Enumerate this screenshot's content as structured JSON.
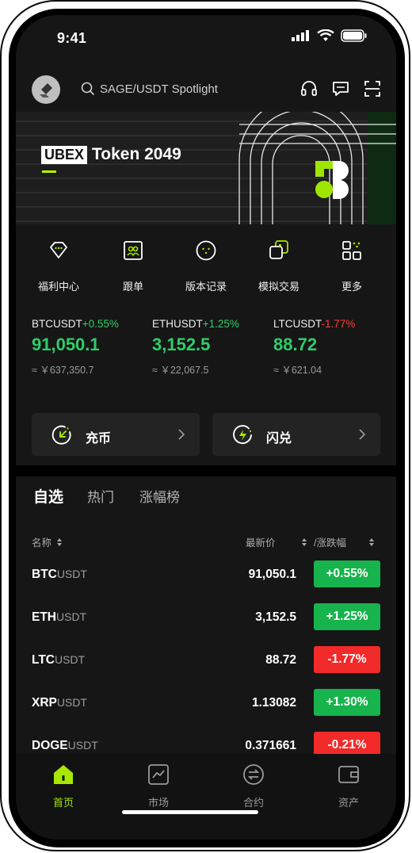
{
  "status": {
    "time": "9:41"
  },
  "search": {
    "text": "SAGE/USDT Spotlight"
  },
  "banner": {
    "brand": "UBEX",
    "title": "Token 2049"
  },
  "quick_menu": [
    {
      "label": "福利中心",
      "icon": "diamond-gift-icon"
    },
    {
      "label": "跟单",
      "icon": "copy-trade-icon"
    },
    {
      "label": "版本记录",
      "icon": "version-icon"
    },
    {
      "label": "模拟交易",
      "icon": "demo-trade-icon"
    },
    {
      "label": "更多",
      "icon": "more-grid-icon"
    }
  ],
  "tickers": [
    {
      "symbol": "BTCUSDT",
      "change": "+0.55%",
      "price": "91,050.1",
      "cny": "≈ ￥637,350.7",
      "dir": "up"
    },
    {
      "symbol": "ETHUSDT",
      "change": "+1.25%",
      "price": "3,152.5",
      "cny": "≈ ￥22,067.5",
      "dir": "up"
    },
    {
      "symbol": "LTCUSDT",
      "change": "-1.77%",
      "price": "88.72",
      "cny": "≈ ￥621.04",
      "dir": "down"
    }
  ],
  "actions": {
    "deposit": "充币",
    "swap": "闪兑"
  },
  "market": {
    "tabs": [
      "自选",
      "热门",
      "涨幅榜"
    ],
    "col_name": "名称",
    "col_price": "最新价",
    "col_change": "/涨跌幅",
    "rows": [
      {
        "base": "BTC",
        "quote": "USDT",
        "price": "91,050.1",
        "change": "+0.55%",
        "dir": "up"
      },
      {
        "base": "ETH",
        "quote": "USDT",
        "price": "3,152.5",
        "change": "+1.25%",
        "dir": "up"
      },
      {
        "base": "LTC",
        "quote": "USDT",
        "price": "88.72",
        "change": "-1.77%",
        "dir": "down"
      },
      {
        "base": "XRP",
        "quote": "USDT",
        "price": "1.13082",
        "change": "+1.30%",
        "dir": "up"
      },
      {
        "base": "DOGE",
        "quote": "USDT",
        "price": "0.371661",
        "change": "-0.21%",
        "dir": "down"
      }
    ]
  },
  "nav": [
    {
      "label": "首页",
      "icon": "home-icon",
      "active": true
    },
    {
      "label": "市场",
      "icon": "chart-icon",
      "active": false
    },
    {
      "label": "合约",
      "icon": "swap-circle-icon",
      "active": false
    },
    {
      "label": "资产",
      "icon": "wallet-icon",
      "active": false
    }
  ],
  "colors": {
    "accent": "#a6e800",
    "up": "#17b34c",
    "down": "#f22a2a"
  }
}
